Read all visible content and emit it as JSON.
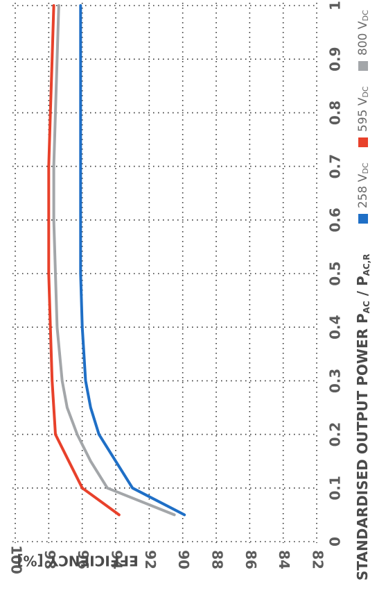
{
  "chart_data": {
    "type": "line",
    "xlabel": "STANDARDISED OUTPUT POWER P",
    "xlabel_sub1": "AC",
    "xlabel_mid": " / P",
    "xlabel_sub2": "AC,R",
    "ylabel": "EFFICIENCY [%]",
    "xlim": [
      0,
      1
    ],
    "ylim": [
      82,
      100
    ],
    "x_ticks": [
      "0",
      "0.1",
      "0.2",
      "0.3",
      "0.4",
      "0.5",
      "0.6",
      "0.7",
      "0.8",
      "0.9",
      "1"
    ],
    "y_ticks": [
      "82",
      "84",
      "86",
      "88",
      "90",
      "92",
      "94",
      "96",
      "98",
      "100"
    ],
    "grid": true,
    "legend_position": "bottom",
    "series": [
      {
        "name": "258 V",
        "name_sub": "DC",
        "color": "#1f6fc6",
        "x": [
          0.05,
          0.1,
          0.15,
          0.2,
          0.25,
          0.3,
          0.4,
          0.5,
          0.6,
          0.7,
          0.8,
          0.9,
          1.0
        ],
        "y": [
          89.9,
          93.0,
          94.0,
          95.0,
          95.5,
          95.8,
          96.0,
          96.1,
          96.1,
          96.1,
          96.1,
          96.1,
          96.1
        ]
      },
      {
        "name": "595 V",
        "name_sub": "DC",
        "color": "#e8412b",
        "x": [
          0.05,
          0.1,
          0.15,
          0.2,
          0.3,
          0.4,
          0.5,
          0.6,
          0.7,
          0.8,
          0.9,
          1.0
        ],
        "y": [
          93.8,
          96.0,
          96.8,
          97.6,
          97.8,
          97.9,
          98.0,
          98.0,
          98.0,
          97.9,
          97.8,
          97.7
        ]
      },
      {
        "name": "800 V",
        "name_sub": "DC",
        "color": "#a3a6a9",
        "x": [
          0.05,
          0.1,
          0.15,
          0.2,
          0.25,
          0.3,
          0.4,
          0.5,
          0.6,
          0.7,
          0.8,
          0.9,
          1.0
        ],
        "y": [
          90.5,
          94.5,
          95.5,
          96.3,
          96.9,
          97.2,
          97.5,
          97.6,
          97.7,
          97.7,
          97.6,
          97.5,
          97.4
        ]
      }
    ]
  }
}
